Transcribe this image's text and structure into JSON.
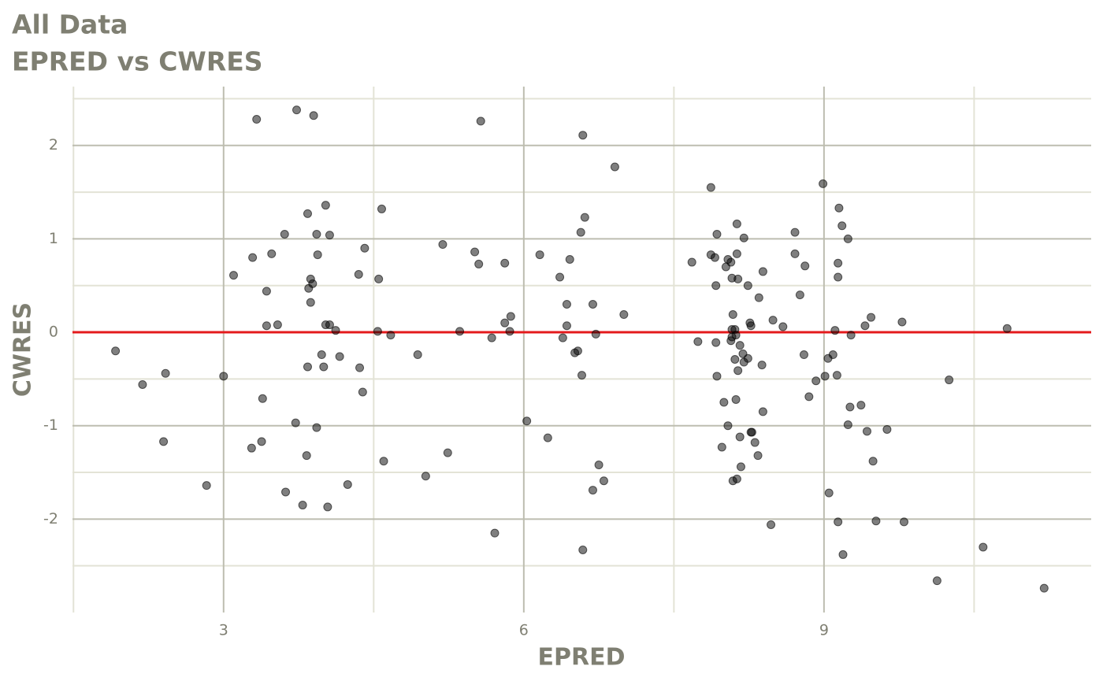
{
  "chart_data": {
    "type": "scatter",
    "title": "All Data",
    "subtitle": "EPRED vs CWRES",
    "x_label": "EPRED",
    "y_label": "CWRES",
    "xlim": [
      1.49,
      11.67
    ],
    "ylim": [
      -3.0,
      2.63
    ],
    "xticks": [
      3,
      6,
      9
    ],
    "yticks": [
      -2,
      -1,
      0,
      1,
      2
    ],
    "grid": true,
    "reference_line": {
      "value": 0,
      "color": "#e41a1c"
    },
    "series": [
      {
        "color": "#000000",
        "x": [
          1.92,
          2.19,
          2.42,
          2.4,
          2.83,
          3.0,
          3.1,
          3.29,
          3.28,
          3.33,
          3.39,
          3.38,
          3.43,
          3.43,
          3.48,
          3.54,
          3.61,
          3.62,
          3.72,
          3.73,
          3.79,
          3.83,
          3.84,
          3.84,
          3.85,
          3.87,
          3.87,
          3.89,
          3.9,
          3.93,
          3.93,
          3.94,
          3.98,
          4.0,
          4.02,
          4.02,
          4.04,
          4.06,
          4.06,
          4.12,
          4.16,
          4.24,
          4.35,
          4.36,
          4.39,
          4.41,
          4.54,
          4.55,
          4.58,
          4.6,
          4.67,
          4.94,
          5.02,
          5.19,
          5.24,
          5.36,
          5.51,
          5.55,
          5.57,
          5.68,
          5.71,
          5.81,
          5.81,
          5.86,
          5.87,
          6.03,
          6.16,
          6.24,
          6.36,
          6.39,
          6.43,
          6.43,
          6.46,
          6.51,
          6.54,
          6.57,
          6.58,
          6.59,
          6.59,
          6.61,
          6.69,
          6.69,
          6.72,
          6.75,
          6.8,
          6.91,
          7.0,
          7.68,
          7.74,
          7.87,
          7.87,
          7.91,
          7.92,
          7.92,
          7.93,
          7.93,
          7.98,
          8.0,
          8.02,
          8.04,
          8.04,
          8.07,
          8.07,
          8.08,
          8.08,
          8.08,
          8.09,
          8.09,
          8.11,
          8.11,
          8.12,
          8.12,
          8.13,
          8.13,
          8.13,
          8.14,
          8.14,
          8.16,
          8.16,
          8.17,
          8.19,
          8.2,
          8.2,
          8.24,
          8.24,
          8.26,
          8.27,
          8.28,
          8.27,
          8.31,
          8.34,
          8.35,
          8.38,
          8.39,
          8.39,
          8.47,
          8.49,
          8.59,
          8.71,
          8.71,
          8.76,
          8.8,
          8.81,
          8.85,
          8.92,
          8.99,
          9.01,
          9.04,
          9.05,
          9.09,
          9.11,
          9.13,
          9.14,
          9.14,
          9.14,
          9.15,
          9.18,
          9.19,
          9.24,
          9.24,
          9.26,
          9.27,
          9.37,
          9.41,
          9.43,
          9.47,
          9.49,
          9.52,
          9.63,
          9.78,
          9.8,
          10.13,
          10.25,
          10.59,
          10.83,
          11.2
        ],
        "values": [
          -0.2,
          -0.56,
          -0.44,
          -1.17,
          -1.64,
          -0.47,
          0.61,
          0.8,
          -1.24,
          2.28,
          -0.71,
          -1.17,
          0.44,
          0.07,
          0.84,
          0.08,
          1.05,
          -1.71,
          -0.97,
          2.38,
          -1.85,
          -1.32,
          1.27,
          -0.37,
          0.47,
          0.57,
          0.32,
          0.52,
          2.32,
          1.05,
          -1.02,
          0.83,
          -0.24,
          -0.37,
          1.36,
          0.08,
          -1.87,
          1.04,
          0.08,
          0.02,
          -0.26,
          -1.63,
          0.62,
          -0.38,
          -0.64,
          0.9,
          0.01,
          0.57,
          1.32,
          -1.38,
          -0.03,
          -0.24,
          -1.54,
          0.94,
          -1.29,
          0.01,
          0.86,
          0.73,
          2.26,
          -0.06,
          -2.15,
          0.74,
          0.1,
          0.01,
          0.17,
          -0.95,
          0.83,
          -1.13,
          0.59,
          -0.06,
          0.3,
          0.07,
          0.78,
          -0.22,
          -0.2,
          1.07,
          -0.46,
          2.11,
          -2.33,
          1.23,
          0.3,
          -1.69,
          -0.02,
          -1.42,
          -1.59,
          1.77,
          0.19,
          0.75,
          -0.1,
          1.55,
          0.83,
          0.8,
          -0.11,
          0.5,
          -0.47,
          1.05,
          -1.23,
          -0.75,
          0.7,
          0.78,
          -1.0,
          0.75,
          -0.09,
          0.58,
          -0.05,
          0.03,
          0.19,
          -1.59,
          0.03,
          -0.29,
          -0.03,
          -0.72,
          0.84,
          1.16,
          -1.57,
          -0.41,
          0.57,
          -0.14,
          -1.12,
          -1.44,
          -0.23,
          -0.32,
          1.01,
          0.5,
          -0.28,
          0.1,
          -1.07,
          -1.07,
          0.07,
          -1.18,
          -1.32,
          0.37,
          -0.35,
          -0.85,
          0.65,
          -2.06,
          0.13,
          0.06,
          1.07,
          0.84,
          0.4,
          -0.24,
          0.71,
          -0.69,
          -0.52,
          1.59,
          -0.47,
          -0.28,
          -1.72,
          -0.24,
          0.02,
          -0.46,
          0.74,
          0.59,
          -2.03,
          1.33,
          1.14,
          -2.38,
          -0.99,
          1.0,
          -0.8,
          -0.03,
          -0.78,
          0.07,
          -1.06,
          0.16,
          -1.38,
          -2.02,
          -1.04,
          0.11,
          -2.03,
          -2.66,
          -0.51,
          -2.3,
          0.04,
          -2.74
        ]
      }
    ]
  }
}
